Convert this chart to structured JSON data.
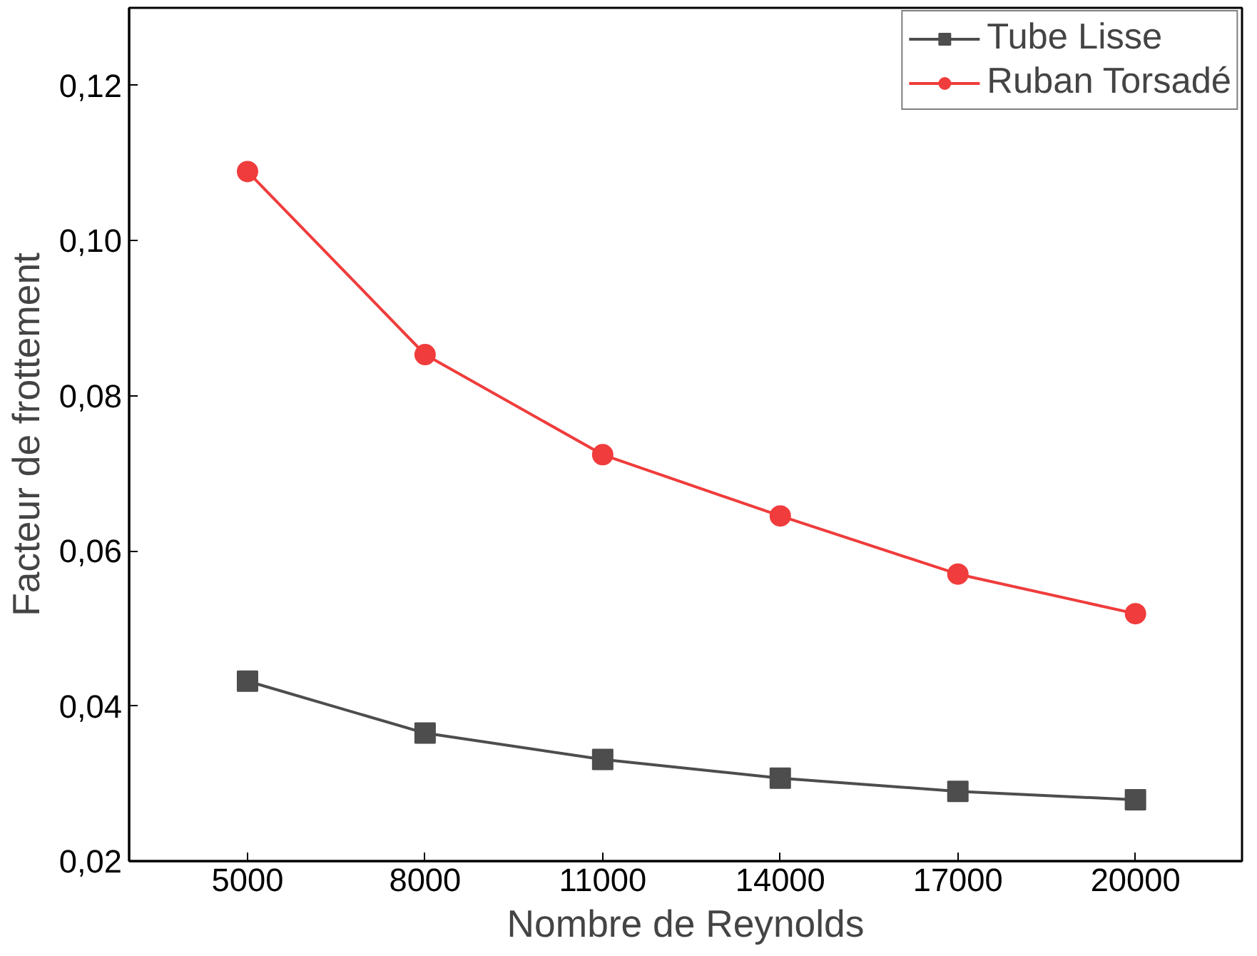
{
  "chart_data": {
    "type": "line",
    "xlabel": "Nombre de Reynolds",
    "ylabel": "Facteur de frottement",
    "x": [
      5000,
      8000,
      11000,
      14000,
      17000,
      20000
    ],
    "xlim": [
      3000,
      21800
    ],
    "xticks": [
      5000,
      8000,
      11000,
      14000,
      17000,
      20000
    ],
    "ylim": [
      0.02,
      0.13
    ],
    "yticks": [
      {
        "value": 0.02,
        "label": "0,02"
      },
      {
        "value": 0.04,
        "label": "0,04"
      },
      {
        "value": 0.06,
        "label": "0,06"
      },
      {
        "value": 0.08,
        "label": "0,08"
      },
      {
        "value": 0.1,
        "label": "0,10"
      },
      {
        "value": 0.12,
        "label": "0,12"
      }
    ],
    "grid": false,
    "legend": "top right",
    "line_style": "solid",
    "series": [
      {
        "name": "Tube Lisse",
        "color": "#4d4d4d",
        "marker": "square",
        "values": [
          0.0432,
          0.0365,
          0.0331,
          0.0307,
          0.029,
          0.0279
        ]
      },
      {
        "name": "Ruban Torsadé",
        "color": "#f03c3c",
        "marker": "circle",
        "values": [
          0.1089,
          0.0853,
          0.0724,
          0.0645,
          0.057,
          0.0519
        ]
      }
    ]
  }
}
